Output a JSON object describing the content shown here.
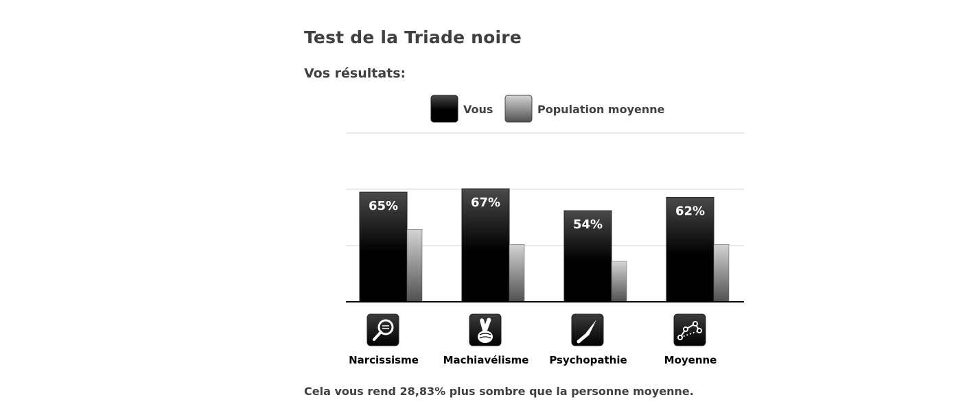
{
  "page": {
    "title": "Test de la Triade noire",
    "subtitle": "Vos résultats:",
    "footer": "Cela vous rend 28,83% plus sombre que la personne moyenne."
  },
  "chart_data": {
    "type": "bar",
    "categories": [
      "Narcissisme",
      "Machiavélisme",
      "Psychopathie",
      "Moyenne"
    ],
    "category_icons": [
      "magnifying-glass-icon",
      "crossed-fingers-icon",
      "knife-icon",
      "dotted-trend-icon"
    ],
    "series": [
      {
        "name": "Vous",
        "values": [
          65,
          67,
          54,
          62
        ],
        "labels": [
          "65%",
          "67%",
          "54%",
          "62%"
        ],
        "color": "#000000"
      },
      {
        "name": "Population moyenne",
        "values": [
          43,
          34,
          24,
          34
        ],
        "color": "#777777"
      }
    ],
    "ylim": [
      0,
      100
    ],
    "grid": true,
    "legend_position": "top-center",
    "colors": {
      "you_top": "#4a4a4a",
      "you_bottom": "#000000",
      "pop_top": "#cfcfcf",
      "pop_bottom": "#555555",
      "grid": "#d0d0d0",
      "axis": "#000000"
    }
  }
}
